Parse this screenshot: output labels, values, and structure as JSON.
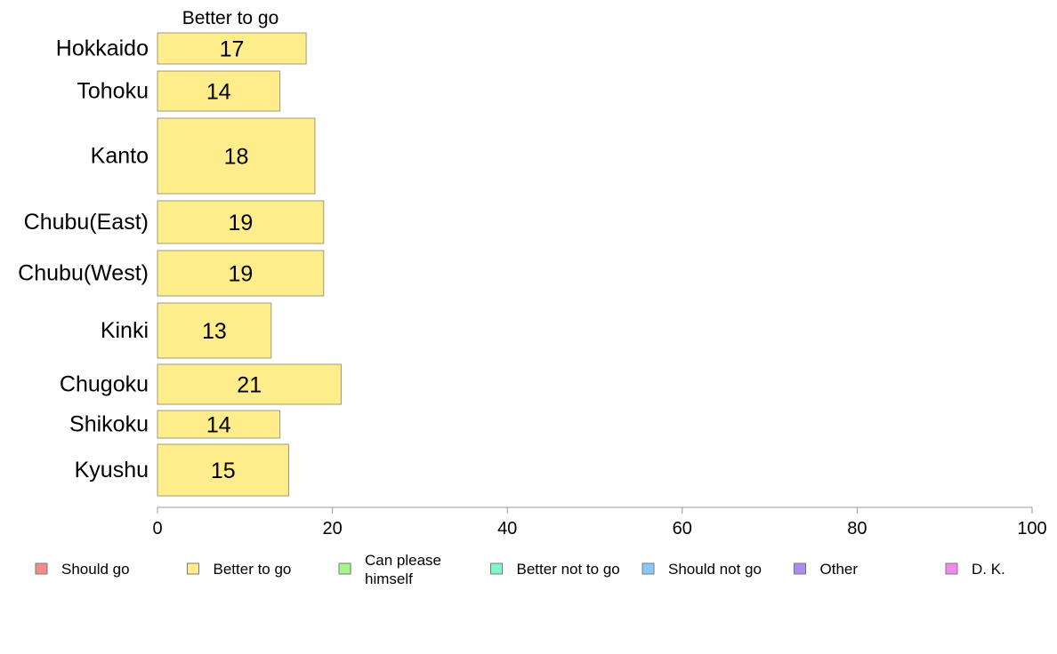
{
  "chart_data": {
    "type": "bar",
    "orientation": "horizontal",
    "column_title": "Better to go",
    "categories": [
      "Hokkaido",
      "Tohoku",
      "Kanto",
      "Chubu(East)",
      "Chubu(West)",
      "Kinki",
      "Chugoku",
      "Shikoku",
      "Kyushu"
    ],
    "series": [
      {
        "name": "Better to go",
        "values": [
          17,
          14,
          18,
          19,
          19,
          13,
          21,
          14,
          15
        ]
      }
    ],
    "xlim": [
      0,
      100
    ],
    "xticks": [
      0,
      20,
      40,
      60,
      80,
      100
    ],
    "grid": false,
    "bar_color": "#ffed8c",
    "bar_edge_color": "#a09a78",
    "legend": {
      "placement": "bottom",
      "entries": [
        {
          "label": "Should go",
          "color": "#f48a8a"
        },
        {
          "label": "Better to go",
          "color": "#ffed8c"
        },
        {
          "label": "Can please himself",
          "lines": [
            "Can please",
            "himself"
          ],
          "color": "#a6f58a"
        },
        {
          "label": "Better not to go",
          "color": "#83f7c6"
        },
        {
          "label": "Should not go",
          "color": "#8ac8f7"
        },
        {
          "label": "Other",
          "color": "#ab8af4"
        },
        {
          "label": "D. K.",
          "color": "#f48ae8"
        }
      ]
    }
  }
}
